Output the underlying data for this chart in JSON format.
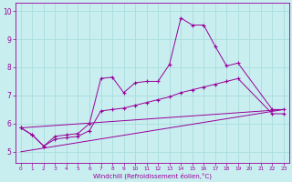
{
  "title": "",
  "xlabel": "Windchill (Refroidissement éolien,°C)",
  "bg_color": "#c8eef0",
  "line_color": "#990099",
  "grid_color": "#aadddd",
  "xlim": [
    -0.5,
    23.5
  ],
  "ylim": [
    4.6,
    10.3
  ],
  "xticks": [
    0,
    1,
    2,
    3,
    4,
    5,
    6,
    7,
    8,
    9,
    10,
    11,
    12,
    13,
    14,
    15,
    16,
    17,
    18,
    19,
    20,
    21,
    22,
    23
  ],
  "yticks": [
    5,
    6,
    7,
    8,
    9,
    10
  ],
  "series0_x": [
    0,
    1,
    2,
    3,
    4,
    5,
    6,
    7,
    8,
    9,
    10,
    11,
    12,
    13,
    14,
    15,
    16,
    17,
    18,
    19,
    22,
    23
  ],
  "series0_y": [
    5.85,
    5.6,
    5.2,
    5.55,
    5.6,
    5.65,
    6.0,
    7.6,
    7.65,
    7.1,
    7.45,
    7.5,
    7.5,
    8.1,
    9.75,
    9.5,
    9.5,
    8.75,
    8.05,
    8.15,
    6.5,
    6.5
  ],
  "series1_x": [
    0,
    1,
    2,
    3,
    4,
    5,
    6,
    7,
    8,
    9,
    10,
    11,
    12,
    13,
    14,
    15,
    16,
    17,
    18,
    19,
    22,
    23
  ],
  "series1_y": [
    5.85,
    5.6,
    5.2,
    5.45,
    5.5,
    5.55,
    5.75,
    6.45,
    6.5,
    6.55,
    6.65,
    6.75,
    6.85,
    6.95,
    7.1,
    7.2,
    7.3,
    7.4,
    7.5,
    7.6,
    6.35,
    6.35
  ],
  "series2_x": [
    0,
    23
  ],
  "series2_y": [
    5.85,
    6.5
  ],
  "series3_x": [
    0,
    23
  ],
  "series3_y": [
    5.0,
    6.5
  ]
}
